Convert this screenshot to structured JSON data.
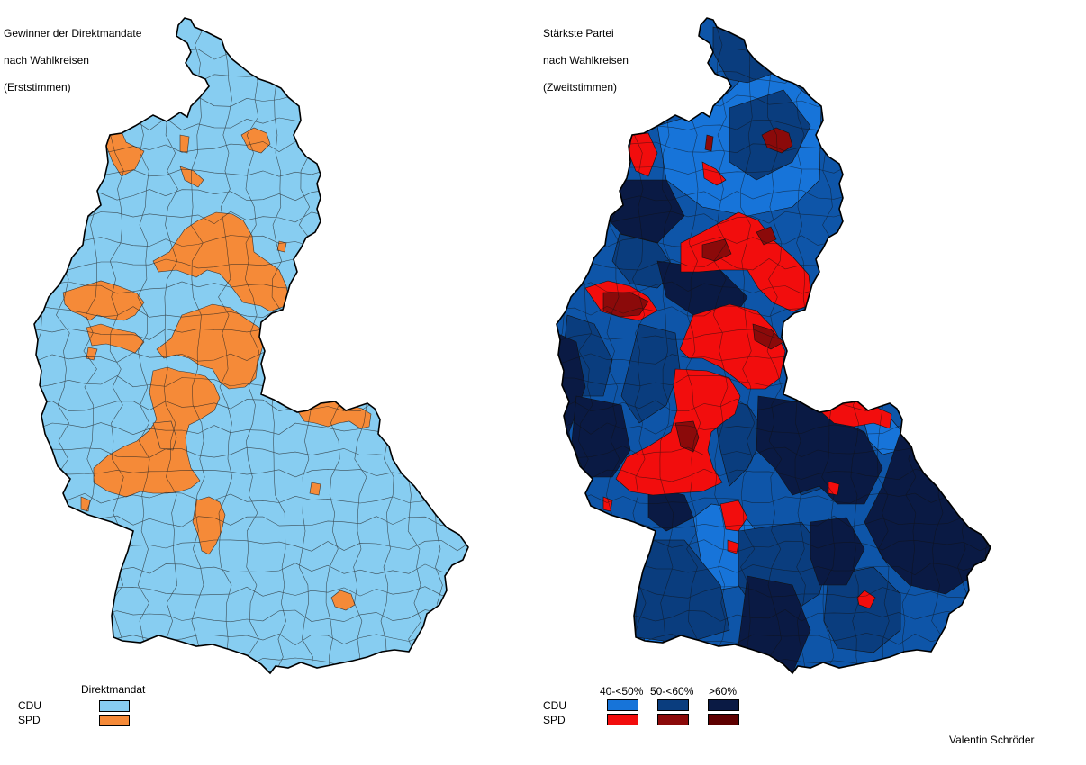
{
  "left_map": {
    "title_lines": [
      "Gewinner der Direktmandate",
      "nach Wahlkreisen",
      "(Erststimmen)"
    ],
    "legend": {
      "header": "Direktmandat",
      "rows": [
        {
          "party": "CDU",
          "color": "#87CDF1"
        },
        {
          "party": "SPD",
          "color": "#F58A38"
        }
      ]
    }
  },
  "right_map": {
    "title_lines": [
      "Stärkste Partei",
      "nach Wahlkreisen",
      "(Zweitstimmen)"
    ],
    "legend": {
      "bands": [
        "40-<50%",
        "50-<60%",
        ">60%"
      ],
      "rows": [
        {
          "party": "CDU",
          "colors": [
            "#1774D9",
            "#0A3D7E",
            "#0A1A44"
          ]
        },
        {
          "party": "SPD",
          "colors": [
            "#F20D0D",
            "#8B0A0A",
            "#5E0000"
          ]
        }
      ]
    }
  },
  "credit": "Valentin Schröder",
  "colors": {
    "cdu_first": "#87CDF1",
    "spd_first": "#F58A38",
    "cdu_40": "#1774D9",
    "cdu_50": "#0A3D7E",
    "cdu_60": "#0A1A44",
    "cdu_mid": "#0E55A8",
    "spd_40": "#F20D0D",
    "spd_50": "#8B0A0A",
    "spd_60": "#5E0000"
  }
}
